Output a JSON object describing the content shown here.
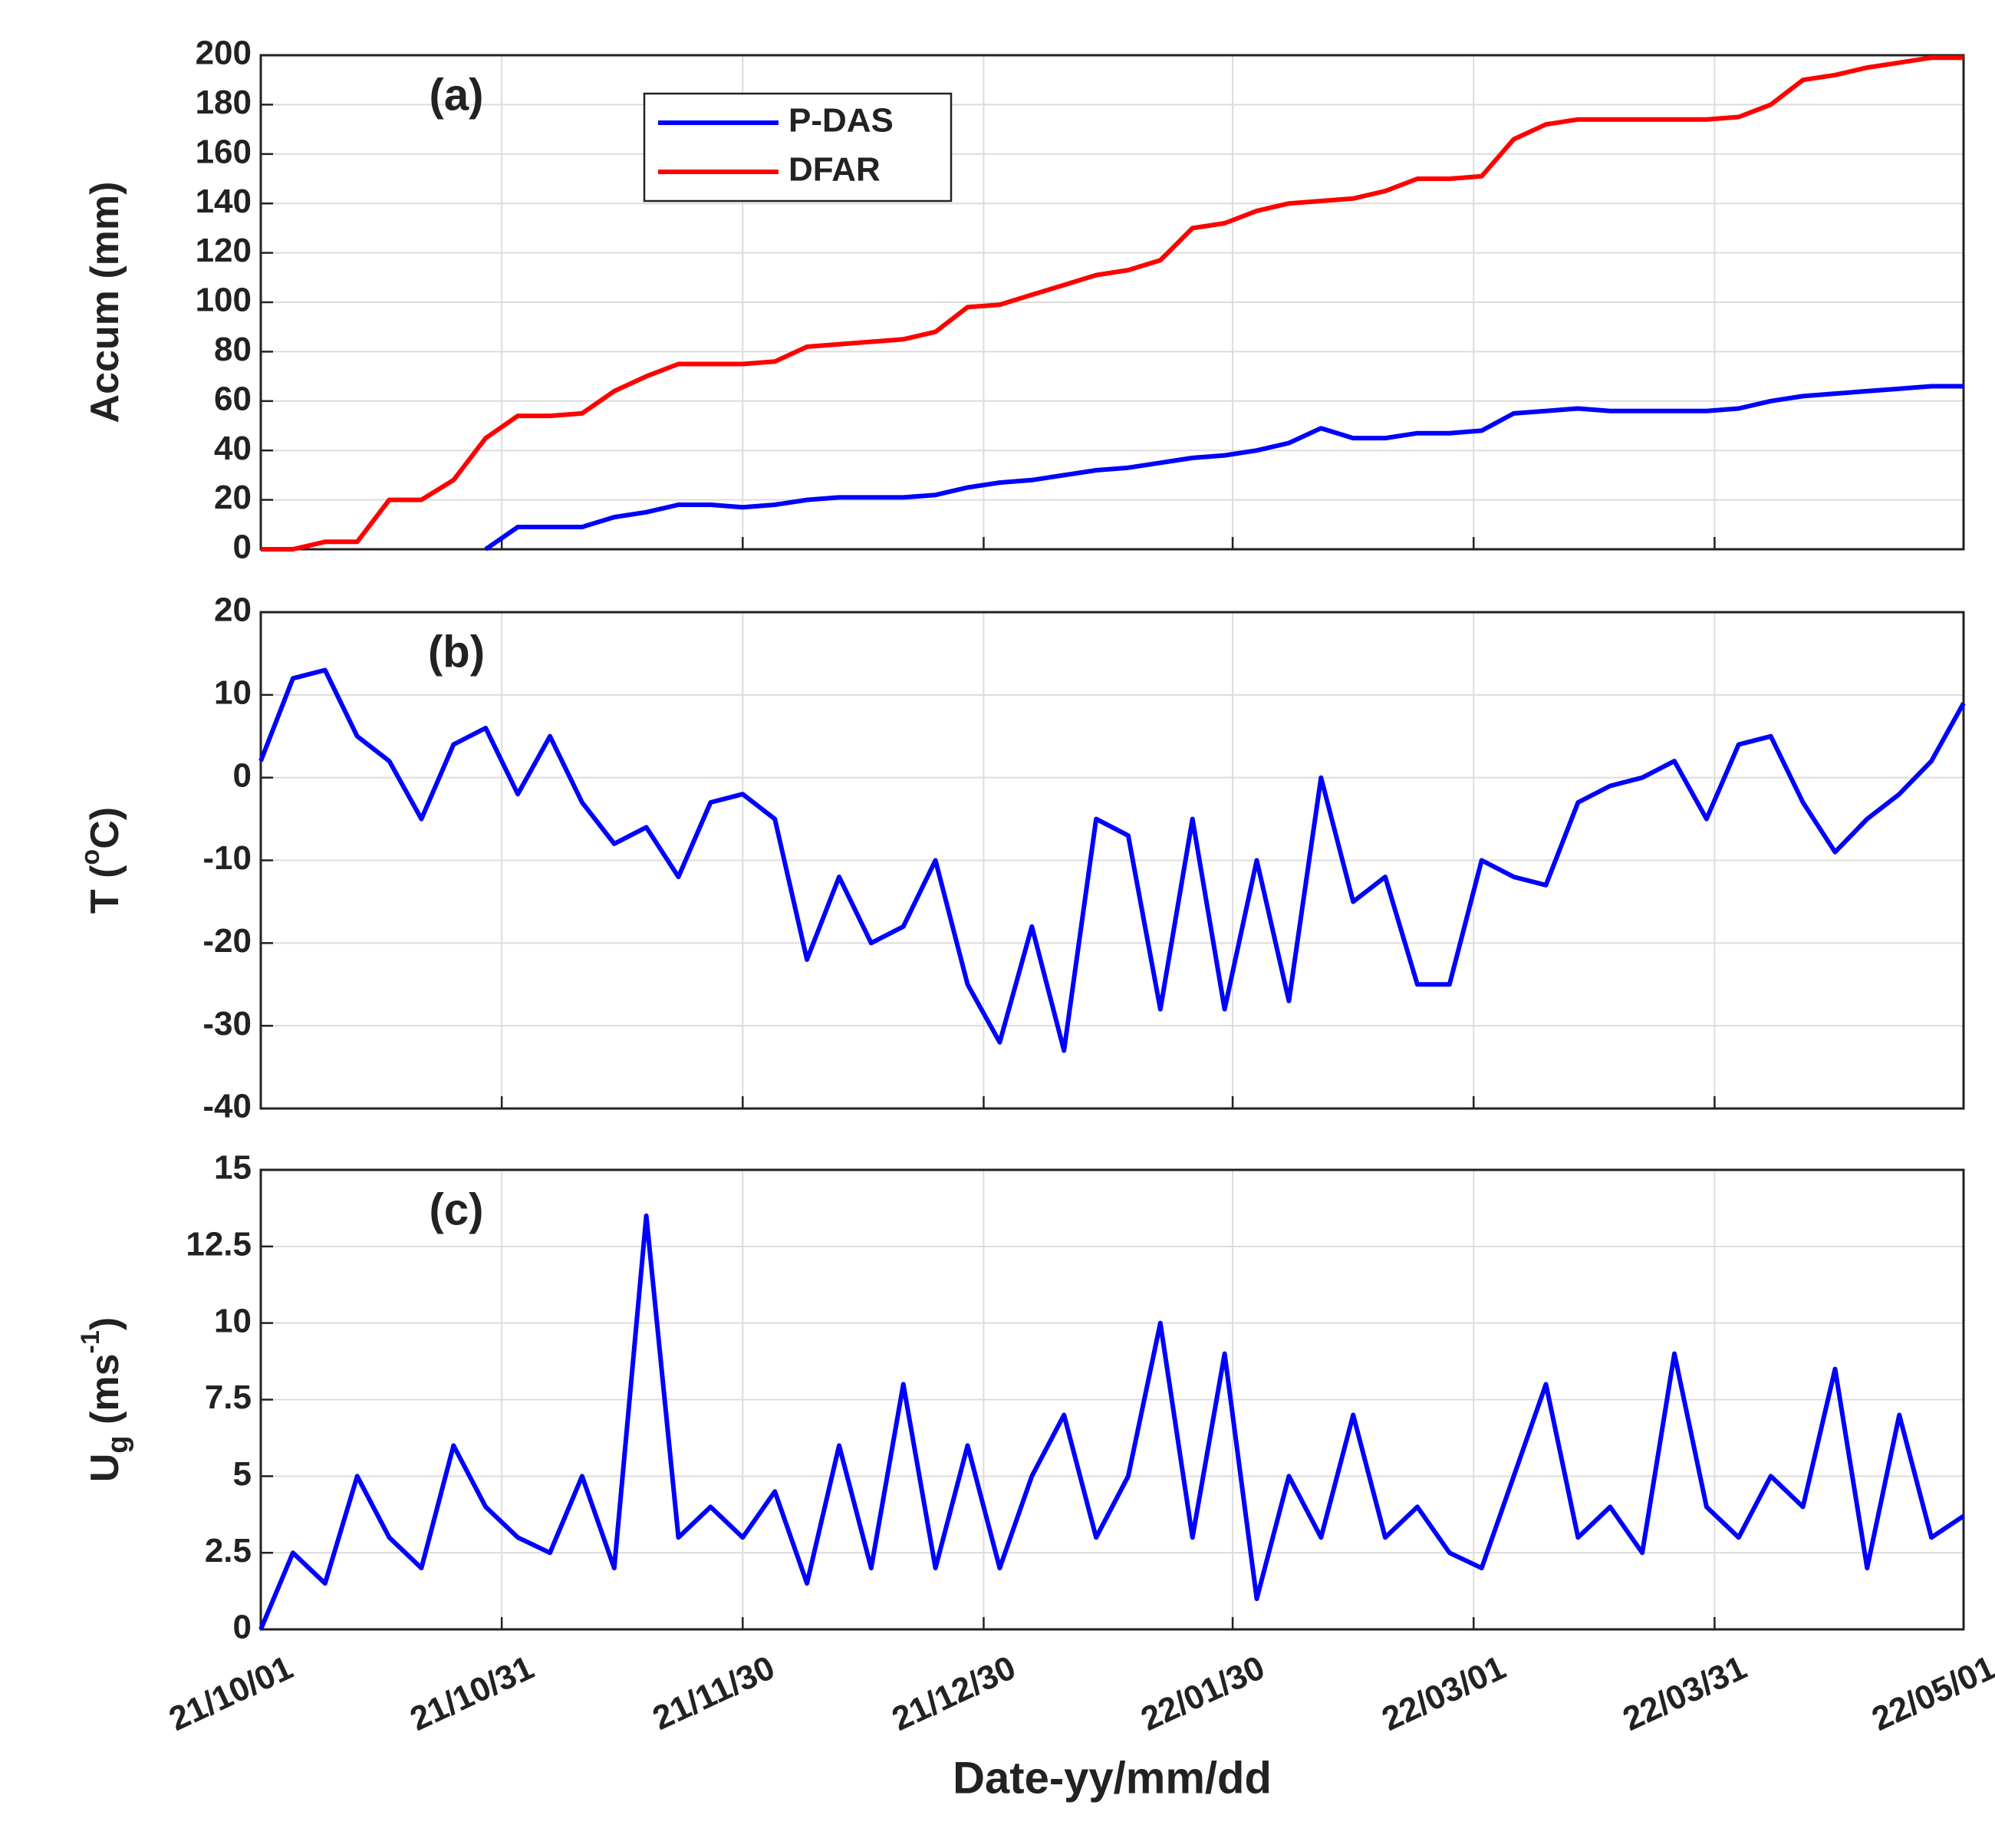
{
  "chart_data": [
    {
      "type": "line",
      "annotation": "(a)",
      "ylabel": [
        "Accum (mm)"
      ],
      "xlim": [
        "21/10/01",
        "22/05/01"
      ],
      "ylim": [
        0,
        200
      ],
      "yticks": [
        0,
        20,
        40,
        60,
        80,
        100,
        120,
        140,
        160,
        180,
        200
      ],
      "grid": true,
      "legend": "upper center",
      "x": [
        "21/10/01",
        "21/10/05",
        "21/10/09",
        "21/10/13",
        "21/10/17",
        "21/10/21",
        "21/10/25",
        "21/10/29",
        "21/11/02",
        "21/11/06",
        "21/11/10",
        "21/11/14",
        "21/11/18",
        "21/11/22",
        "21/11/26",
        "21/11/30",
        "21/12/04",
        "21/12/08",
        "21/12/12",
        "21/12/16",
        "21/12/20",
        "21/12/24",
        "21/12/28",
        "22/01/01",
        "22/01/05",
        "22/01/09",
        "22/01/13",
        "22/01/17",
        "22/01/21",
        "22/01/25",
        "22/01/29",
        "22/02/02",
        "22/02/06",
        "22/02/10",
        "22/02/14",
        "22/02/18",
        "22/02/22",
        "22/02/26",
        "22/03/02",
        "22/03/06",
        "22/03/10",
        "22/03/14",
        "22/03/18",
        "22/03/22",
        "22/03/26",
        "22/03/30",
        "22/04/03",
        "22/04/07",
        "22/04/11",
        "22/04/15",
        "22/04/19",
        "22/04/23",
        "22/04/27",
        "22/05/01"
      ],
      "series": [
        {
          "name": "P-DAS",
          "color": "#0000ff",
          "values": [
            null,
            null,
            null,
            null,
            null,
            null,
            null,
            0,
            9,
            9,
            9,
            13,
            15,
            18,
            18,
            17,
            18,
            20,
            21,
            21,
            21,
            22,
            25,
            27,
            28,
            30,
            32,
            33,
            35,
            37,
            38,
            40,
            43,
            49,
            45,
            45,
            47,
            47,
            48,
            55,
            56,
            57,
            56,
            56,
            56,
            56,
            57,
            60,
            62,
            63,
            64,
            65,
            66,
            66
          ]
        },
        {
          "name": "DFAR",
          "color": "#ff0000",
          "values": [
            0,
            0,
            3,
            3,
            20,
            20,
            28,
            45,
            54,
            54,
            55,
            64,
            70,
            75,
            75,
            75,
            76,
            82,
            83,
            84,
            85,
            88,
            98,
            99,
            103,
            107,
            111,
            113,
            117,
            130,
            132,
            137,
            140,
            141,
            142,
            145,
            150,
            150,
            151,
            166,
            172,
            174,
            174,
            174,
            174,
            174,
            175,
            180,
            190,
            192,
            195,
            197,
            199,
            199
          ]
        }
      ]
    },
    {
      "type": "line",
      "annotation": "(b)",
      "ylabel": [
        "T (",
        "o",
        "C)"
      ],
      "color": "#0000ff",
      "xlim": [
        "21/10/01",
        "22/05/01"
      ],
      "ylim": [
        -40,
        20
      ],
      "yticks": [
        -40,
        -30,
        -20,
        -10,
        0,
        10,
        20
      ],
      "grid": true,
      "x": [
        "21/10/01",
        "21/10/05",
        "21/10/09",
        "21/10/13",
        "21/10/17",
        "21/10/21",
        "21/10/25",
        "21/10/29",
        "21/11/02",
        "21/11/06",
        "21/11/10",
        "21/11/14",
        "21/11/18",
        "21/11/22",
        "21/11/26",
        "21/11/30",
        "21/12/04",
        "21/12/08",
        "21/12/12",
        "21/12/16",
        "21/12/20",
        "21/12/24",
        "21/12/28",
        "22/01/01",
        "22/01/05",
        "22/01/09",
        "22/01/13",
        "22/01/17",
        "22/01/21",
        "22/01/25",
        "22/01/29",
        "22/02/02",
        "22/02/06",
        "22/02/10",
        "22/02/14",
        "22/02/18",
        "22/02/22",
        "22/02/26",
        "22/03/02",
        "22/03/06",
        "22/03/10",
        "22/03/14",
        "22/03/18",
        "22/03/22",
        "22/03/26",
        "22/03/30",
        "22/04/03",
        "22/04/07",
        "22/04/11",
        "22/04/15",
        "22/04/19",
        "22/04/23",
        "22/04/27",
        "22/05/01"
      ],
      "values": [
        2,
        12,
        13,
        5,
        2,
        -5,
        4,
        6,
        -2,
        5,
        -3,
        -8,
        -6,
        -12,
        -3,
        -2,
        -5,
        -22,
        -12,
        -20,
        -18,
        -10,
        -25,
        -32,
        -18,
        -33,
        -5,
        -7,
        -28,
        -5,
        -28,
        -10,
        -27,
        0,
        -15,
        -12,
        -25,
        -25,
        -10,
        -12,
        -13,
        -3,
        -1,
        0,
        2,
        -5,
        4,
        5,
        -3,
        -9,
        -5,
        -2,
        2,
        9
      ]
    },
    {
      "type": "line",
      "annotation": "(c)",
      "ylabel": [
        "U",
        "g",
        " (ms",
        "-1",
        ")"
      ],
      "xlabel": "Date-yy/mm/dd",
      "color": "#0000ff",
      "xlim": [
        "21/10/01",
        "22/05/01"
      ],
      "ylim": [
        0,
        15
      ],
      "yticks": [
        0,
        2.5,
        5,
        7.5,
        10,
        12.5,
        15
      ],
      "grid": true,
      "xticks": [
        "21/10/01",
        "21/10/31",
        "21/11/30",
        "21/12/30",
        "22/01/30",
        "22/03/01",
        "22/03/31",
        "22/05/01"
      ],
      "x": [
        "21/10/01",
        "21/10/05",
        "21/10/09",
        "21/10/13",
        "21/10/17",
        "21/10/21",
        "21/10/25",
        "21/10/29",
        "21/11/02",
        "21/11/06",
        "21/11/10",
        "21/11/14",
        "21/11/18",
        "21/11/22",
        "21/11/26",
        "21/11/30",
        "21/12/04",
        "21/12/08",
        "21/12/12",
        "21/12/16",
        "21/12/20",
        "21/12/24",
        "21/12/28",
        "22/01/01",
        "22/01/05",
        "22/01/09",
        "22/01/13",
        "22/01/17",
        "22/01/21",
        "22/01/25",
        "22/01/29",
        "22/02/02",
        "22/02/06",
        "22/02/10",
        "22/02/14",
        "22/02/18",
        "22/02/22",
        "22/02/26",
        "22/03/02",
        "22/03/06",
        "22/03/10",
        "22/03/14",
        "22/03/18",
        "22/03/22",
        "22/03/26",
        "22/03/30",
        "22/04/03",
        "22/04/07",
        "22/04/11",
        "22/04/15",
        "22/04/19",
        "22/04/23",
        "22/04/27",
        "22/05/01"
      ],
      "values": [
        0,
        2.5,
        1.5,
        5,
        3,
        2,
        6,
        4,
        3,
        2.5,
        5,
        2,
        13.5,
        3,
        4,
        3,
        4.5,
        1.5,
        6,
        2,
        8,
        2,
        6,
        2,
        5,
        7,
        3,
        5,
        10,
        3,
        9,
        1,
        5,
        3,
        7,
        3,
        4,
        2.5,
        2,
        5,
        8,
        3,
        4,
        2.5,
        9,
        4,
        3,
        5,
        4,
        8.5,
        2,
        7,
        3,
        3.7
      ]
    }
  ]
}
